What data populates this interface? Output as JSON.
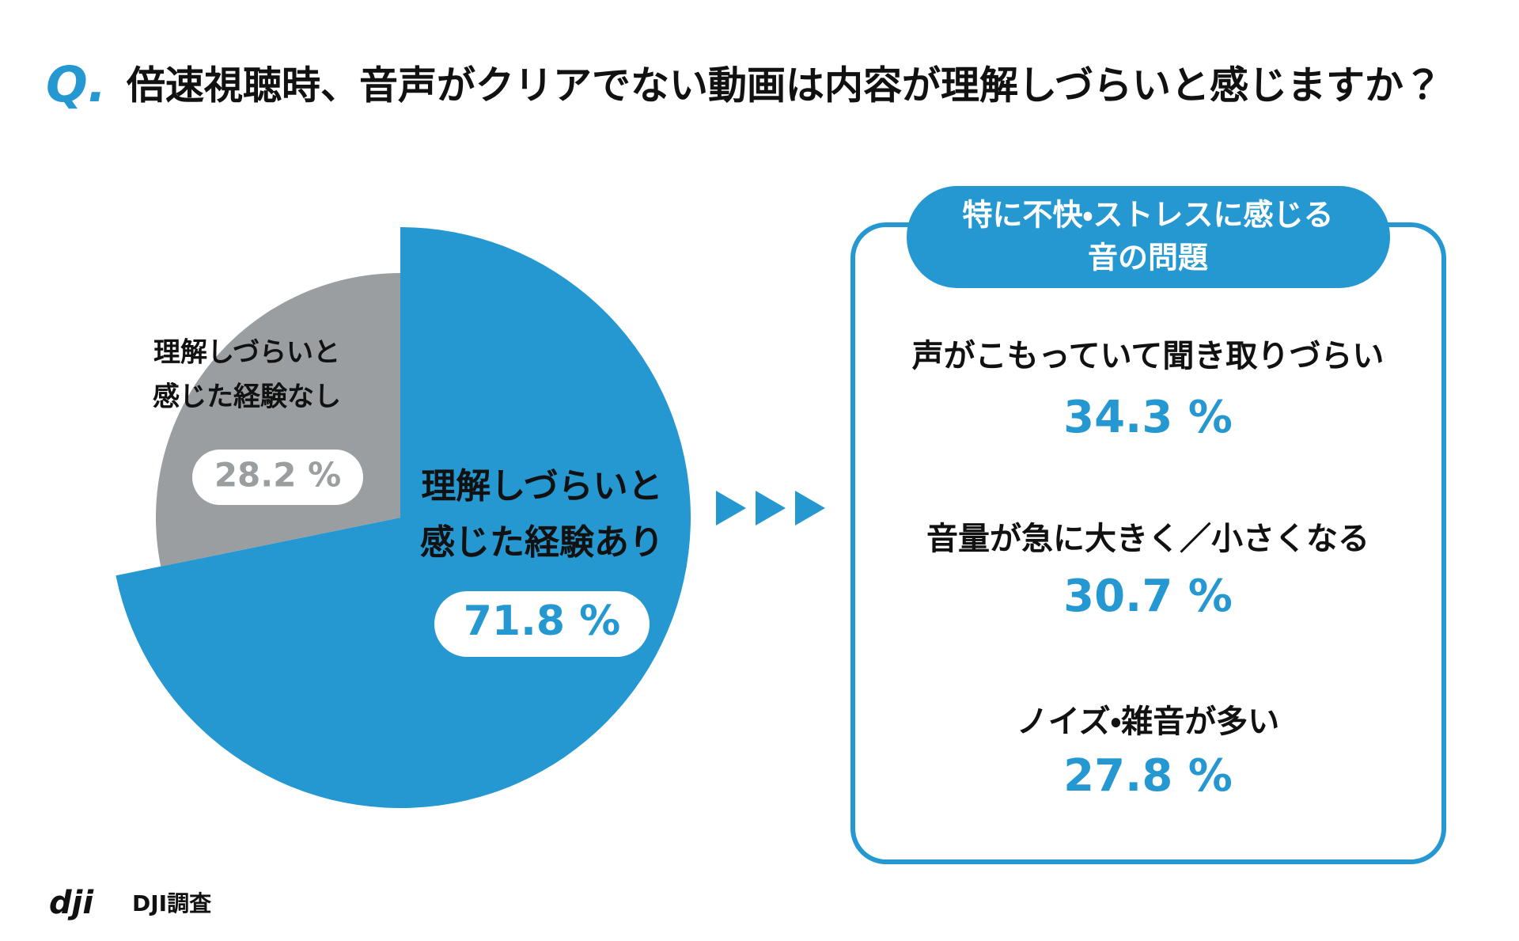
{
  "question": {
    "prefix": "Q.",
    "text": "倍速視聴時、音声がクリアでない動画は内容が理解しづらいと感じますか？"
  },
  "chart_data": {
    "type": "pie",
    "categories": [
      [
        "理解しづらいと",
        "感じた経験あり"
      ],
      [
        "理解しづらいと",
        "感じた経験なし"
      ]
    ],
    "values": [
      71.8,
      28.2
    ],
    "value_labels": [
      "71.8 %",
      "28.2 %"
    ],
    "colors": [
      "#2598d1",
      "#9b9ea1"
    ]
  },
  "panel": {
    "title_lines": [
      "特に不快・ストレスに感じる",
      "音の問題"
    ],
    "items": [
      {
        "label": "声がこもっていて聞き取りづらい",
        "value": 34.3,
        "value_label": "34.3 %"
      },
      {
        "label": "音量が急に大きく／小さくなる",
        "value": 30.7,
        "value_label": "30.7 %"
      },
      {
        "label": "ノイズ・雑音が多い",
        "value": 27.8,
        "value_label": "27.8 %"
      }
    ]
  },
  "source": {
    "logo": "dji",
    "text": "DJI調査"
  }
}
